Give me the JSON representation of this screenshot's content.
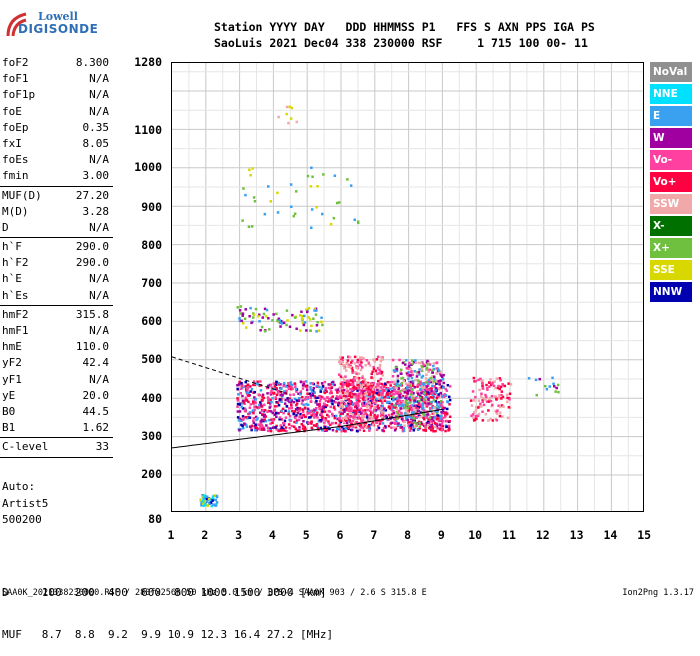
{
  "logo": {
    "line1": "Lowell",
    "line2": "DIGISONDE"
  },
  "header": {
    "line1": "Station YYYY DAY   DDD HHMMSS P1   FFS S AXN PPS IGA PS",
    "line2": "SaoLuis 2021 Dec04 338 230000 RSF     1 715 100 00- 11"
  },
  "params": {
    "group1": [
      {
        "k": "foF2",
        "v": "8.300"
      },
      {
        "k": "foF1",
        "v": "N/A"
      },
      {
        "k": "foF1p",
        "v": "N/A"
      },
      {
        "k": "foE",
        "v": "N/A"
      },
      {
        "k": "foEp",
        "v": "0.35"
      },
      {
        "k": "fxI",
        "v": "8.05"
      },
      {
        "k": "foEs",
        "v": "N/A"
      },
      {
        "k": "fmin",
        "v": "3.00"
      }
    ],
    "group2": [
      {
        "k": "MUF(D)",
        "v": "27.20"
      },
      {
        "k": "M(D)",
        "v": "3.28"
      },
      {
        "k": "D",
        "v": "N/A"
      }
    ],
    "group3": [
      {
        "k": "h`F",
        "v": "290.0"
      },
      {
        "k": "h`F2",
        "v": "290.0"
      },
      {
        "k": "h`E",
        "v": "N/A"
      },
      {
        "k": "h`Es",
        "v": "N/A"
      }
    ],
    "group4": [
      {
        "k": "hmF2",
        "v": "315.8"
      },
      {
        "k": "hmF1",
        "v": "N/A"
      },
      {
        "k": "hmE",
        "v": "110.0"
      },
      {
        "k": "yF2",
        "v": "42.4"
      },
      {
        "k": "yF1",
        "v": "N/A"
      },
      {
        "k": "yE",
        "v": "20.0"
      },
      {
        "k": "B0",
        "v": "44.5"
      },
      {
        "k": "B1",
        "v": "1.62"
      }
    ],
    "group5": [
      {
        "k": "C-level",
        "v": "33"
      }
    ]
  },
  "auto": {
    "l1": "Auto:",
    "l2": "Artist5",
    "l3": "500200"
  },
  "axes": {
    "y_ticks": [
      "1280",
      "1100",
      "1000",
      "900",
      "800",
      "700",
      "600",
      "500",
      "400",
      "300",
      "200",
      "80"
    ],
    "x_ticks": [
      "1",
      "2",
      "3",
      "4",
      "5",
      "6",
      "7",
      "8",
      "9",
      "10",
      "11",
      "12",
      "13",
      "14",
      "15"
    ]
  },
  "legend": [
    {
      "label": "NoVal",
      "color": "#909090"
    },
    {
      "label": "NNE",
      "color": "#00e0ff"
    },
    {
      "label": "E",
      "color": "#3aa0f0"
    },
    {
      "label": "W",
      "color": "#a000a0"
    },
    {
      "label": "Vo-",
      "color": "#ff40a0"
    },
    {
      "label": "Vo+",
      "color": "#ff0040"
    },
    {
      "label": "SSW",
      "color": "#f0a8a8"
    },
    {
      "label": "X-",
      "color": "#007000"
    },
    {
      "label": "X+",
      "color": "#70c040"
    },
    {
      "label": "SSE",
      "color": "#d8d800"
    },
    {
      "label": "NNW",
      "color": "#0000b0"
    }
  ],
  "muf_table": {
    "row1": "D     100  200  400  600  800 1000 1500 3000 [km]",
    "row2": "MUF   8.7  8.8  9.2  9.9 10.9 12.3 16.4 27.2 [MHz]"
  },
  "footer": {
    "left": "SAA0K_2021338230000.RSF / 280fx256h 50 kHz 5.0 km / DPS-4 SAA0K 903 / 2.6 S 315.8 E",
    "right": "Ion2Png 1.3.17"
  }
}
